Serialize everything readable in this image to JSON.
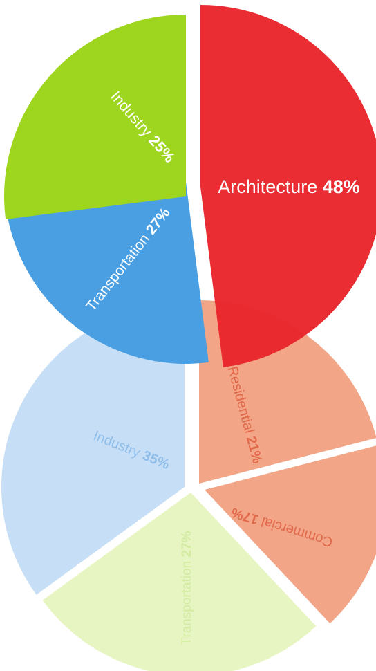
{
  "chart_data": [
    {
      "type": "pie",
      "title": "",
      "slices": [
        {
          "label": "Architecture",
          "value": 48,
          "display": "48%",
          "color": "#e8262c"
        },
        {
          "label": "Industry",
          "value": 25,
          "display": "25%",
          "color": "#4a9fe2"
        },
        {
          "label": "Transportation",
          "value": 27,
          "display": "27%",
          "color": "#9ed51e"
        }
      ]
    },
    {
      "type": "pie",
      "title": "",
      "slices": [
        {
          "label": "Residential",
          "value": 21,
          "display": "21%",
          "color": "#f2a587"
        },
        {
          "label": "Commercial",
          "value": 17,
          "display": "17%",
          "color": "#f2a587"
        },
        {
          "label": "Transportation",
          "value": 27,
          "display": "27%",
          "color": "#e7f5c2"
        },
        {
          "label": "Industry",
          "value": 35,
          "display": "35%",
          "color": "#c7dff6"
        }
      ]
    }
  ]
}
